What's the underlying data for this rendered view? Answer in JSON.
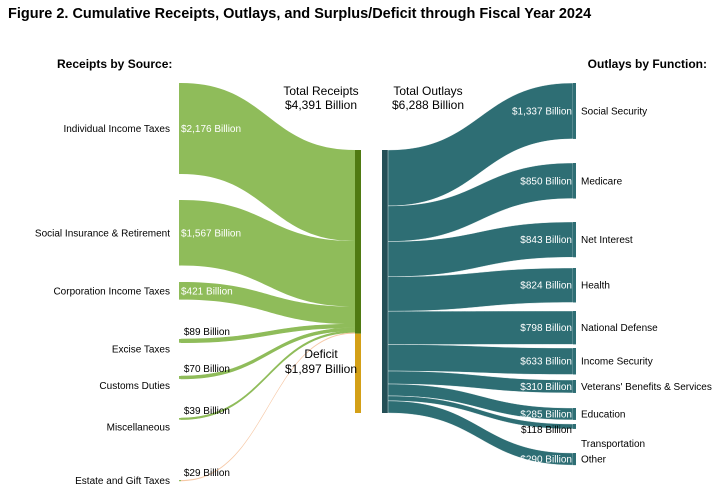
{
  "title": "Figure 2. Cumulative Receipts, Outlays, and Surplus/Deficit through Fiscal Year 2024",
  "colors": {
    "receipts": "#8fbc5a",
    "receipts_bar": "#4f7a12",
    "deficit": "#d4a017",
    "outlays": "#2e6e74",
    "outlays_bar": "#244f56"
  },
  "chart_data": {
    "type": "sankey",
    "title": "Figure 2. Cumulative Receipts, Outlays, and Surplus/Deficit through Fiscal Year 2024",
    "unit": "Billion",
    "receipts_header": "Receipts by Source:",
    "outlays_header": "Outlays by Function:",
    "total_receipts": {
      "label": "Total Receipts",
      "value": 4391,
      "value_label": "$4,391 Billion"
    },
    "total_outlays": {
      "label": "Total Outlays",
      "value": 6288,
      "value_label": "$6,288 Billion"
    },
    "deficit": {
      "label": "Deficit",
      "value": 1897,
      "value_label": "$1,897 Billion"
    },
    "receipts": [
      {
        "name": "Individual Income Taxes",
        "value": 2176,
        "value_label": "$2,176 Billion"
      },
      {
        "name": "Social Insurance & Retirement",
        "value": 1567,
        "value_label": "$1,567 Billion"
      },
      {
        "name": "Corporation Income Taxes",
        "value": 421,
        "value_label": "$421 Billion"
      },
      {
        "name": "Excise Taxes",
        "value": 89,
        "value_label": "$89 Billion"
      },
      {
        "name": "Customs Duties",
        "value": 70,
        "value_label": "$70 Billion"
      },
      {
        "name": "Miscellaneous",
        "value": 39,
        "value_label": "$39 Billion"
      },
      {
        "name": "Estate and Gift Taxes",
        "value": 29,
        "value_label": "$29 Billion"
      }
    ],
    "outlays": [
      {
        "name": "Social Security",
        "value": 1337,
        "value_label": "$1,337 Billion"
      },
      {
        "name": "Medicare",
        "value": 850,
        "value_label": "$850 Billion"
      },
      {
        "name": "Net Interest",
        "value": 843,
        "value_label": "$843 Billion"
      },
      {
        "name": "Health",
        "value": 824,
        "value_label": "$824 Billion"
      },
      {
        "name": "National Defense",
        "value": 798,
        "value_label": "$798 Billion"
      },
      {
        "name": "Income Security",
        "value": 633,
        "value_label": "$633 Billion"
      },
      {
        "name": "Veterans' Benefits & Services",
        "value": 310,
        "value_label": "$310 Billion"
      },
      {
        "name": "Education",
        "value": 285,
        "value_label": "$285 Billion"
      },
      {
        "name": "Transportation",
        "value": 118,
        "value_label": "$118 Billion"
      },
      {
        "name": "Other",
        "value": 290,
        "value_label": "$290 Billion"
      }
    ]
  }
}
